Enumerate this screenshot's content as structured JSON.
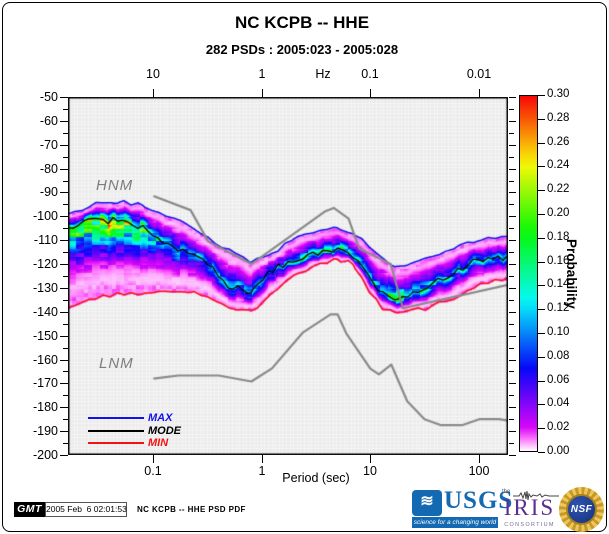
{
  "figure": {
    "title": "NC KCPB -- HHE",
    "subtitle": "282 PSDs : 2005:023 - 2005:028"
  },
  "labels": {
    "hnm": "HNM",
    "lnm": "LNM",
    "xlabel": "Period (sec)",
    "top_axis_unit": "Hz",
    "ylabel_right": "Probability"
  },
  "legend": [
    {
      "label": "MAX",
      "color": "#1212e8"
    },
    {
      "label": "MODE",
      "color": "#000000"
    },
    {
      "label": "MIN",
      "color": "#f31111"
    }
  ],
  "footer": {
    "gmt": "GMT",
    "timestamp": "2005 Feb  6 02:01:53",
    "plot_name": "NC KCPB -- HHE PSD PDF"
  },
  "logos": {
    "usgs": {
      "name": "USGS",
      "tagline": "science for a changing world",
      "wave_glyph": "≋"
    },
    "iris": {
      "the": "the",
      "name": "IRIS",
      "sub": "CONSORTIUM"
    },
    "nsf": {
      "name": "NSF"
    }
  },
  "chart_data": {
    "type": "heatmap",
    "title": "NC KCPB -- HHE",
    "subtitle": "282 PSDs : 2005:023 - 2005:028",
    "xlabel": "Period (sec)",
    "x_scale": "log",
    "x_range_sec": [
      0.0163,
      186
    ],
    "y_range_db": [
      -200,
      -50
    ],
    "y_tick_step": 10,
    "y_minor_step": 5,
    "x_ticks_bottom": [
      0.1,
      1,
      10,
      100
    ],
    "x_axis_top": {
      "unit": "Hz",
      "ticks": [
        {
          "label": "10",
          "sec": 0.1
        },
        {
          "label": "1",
          "sec": 1
        },
        {
          "label": "0.1",
          "sec": 10
        },
        {
          "label": "0.01",
          "sec": 100
        }
      ]
    },
    "colorbar": {
      "label": "Probability",
      "min": 0.0,
      "max": 0.3,
      "tick_step": 0.02
    },
    "background_color": "#ececec",
    "noise_model_color": "#8a8a8a",
    "noise_models": {
      "hnm_points": [
        [
          0.1,
          -91.5
        ],
        [
          0.22,
          -97.4
        ],
        [
          0.32,
          -110.5
        ],
        [
          0.8,
          -120.0
        ],
        [
          3.8,
          -98.0
        ],
        [
          4.6,
          -96.5
        ],
        [
          6.3,
          -101.0
        ],
        [
          7.9,
          -113.5
        ],
        [
          15.4,
          -120.0
        ],
        [
          20.0,
          -138.5
        ],
        [
          186,
          -128.7
        ]
      ],
      "lnm_points": [
        [
          0.1,
          -168.0
        ],
        [
          0.17,
          -166.7
        ],
        [
          0.4,
          -166.7
        ],
        [
          0.8,
          -169.2
        ],
        [
          1.24,
          -163.7
        ],
        [
          2.4,
          -148.6
        ],
        [
          4.3,
          -141.1
        ],
        [
          5.0,
          -141.1
        ],
        [
          6.0,
          -149.0
        ],
        [
          10.0,
          -163.8
        ],
        [
          12.0,
          -166.2
        ],
        [
          15.6,
          -162.1
        ],
        [
          21.9,
          -177.5
        ],
        [
          31.6,
          -185.0
        ],
        [
          45.0,
          -187.5
        ],
        [
          70.0,
          -187.5
        ],
        [
          101.0,
          -185.0
        ],
        [
          154.0,
          -185.0
        ],
        [
          186,
          -185.6
        ]
      ]
    },
    "pdf_band": {
      "columns_format": [
        "period_sec",
        "max_db",
        "mode_db",
        "min_db",
        "peak_probability"
      ],
      "columns": [
        [
          0.0163,
          -99.4,
          -104.5,
          -139.2,
          0.19
        ],
        [
          0.022,
          -97.5,
          -103.0,
          -137.0,
          0.21
        ],
        [
          0.03,
          -94.4,
          -102.0,
          -134.2,
          0.24
        ],
        [
          0.05,
          -94.0,
          -101.8,
          -132.1,
          0.24
        ],
        [
          0.08,
          -95.2,
          -104.9,
          -132.5,
          0.19
        ],
        [
          0.12,
          -98.6,
          -109.9,
          -131.7,
          0.14
        ],
        [
          0.2,
          -103.2,
          -114.9,
          -130.9,
          0.12
        ],
        [
          0.3,
          -108.2,
          -119.1,
          -133.8,
          0.11
        ],
        [
          0.5,
          -114.1,
          -128.8,
          -138.4,
          0.12
        ],
        [
          0.8,
          -118.7,
          -132.5,
          -140.1,
          0.13
        ],
        [
          1.2,
          -116.2,
          -122.9,
          -133.0,
          0.12
        ],
        [
          2.0,
          -109.1,
          -118.7,
          -125.0,
          0.13
        ],
        [
          3.5,
          -105.3,
          -114.9,
          -120.0,
          0.16
        ],
        [
          5.0,
          -104.9,
          -113.7,
          -117.9,
          0.18
        ],
        [
          7.0,
          -107.0,
          -116.6,
          -120.0,
          0.16
        ],
        [
          10,
          -112.8,
          -125.4,
          -132.1,
          0.14
        ],
        [
          13,
          -117.4,
          -132.1,
          -138.8,
          0.16
        ],
        [
          17,
          -120.8,
          -134.6,
          -140.1,
          0.18
        ],
        [
          22,
          -120.4,
          -133.4,
          -139.7,
          0.16
        ],
        [
          35,
          -117.0,
          -129.6,
          -138.4,
          0.13
        ],
        [
          60,
          -113.3,
          -123.3,
          -134.2,
          0.12
        ],
        [
          100,
          -109.9,
          -117.9,
          -128.8,
          0.12
        ],
        [
          140,
          -108.6,
          -117.9,
          -127.1,
          0.12
        ],
        [
          186,
          -108.6,
          -117.0,
          -126.7,
          0.12
        ]
      ]
    }
  }
}
